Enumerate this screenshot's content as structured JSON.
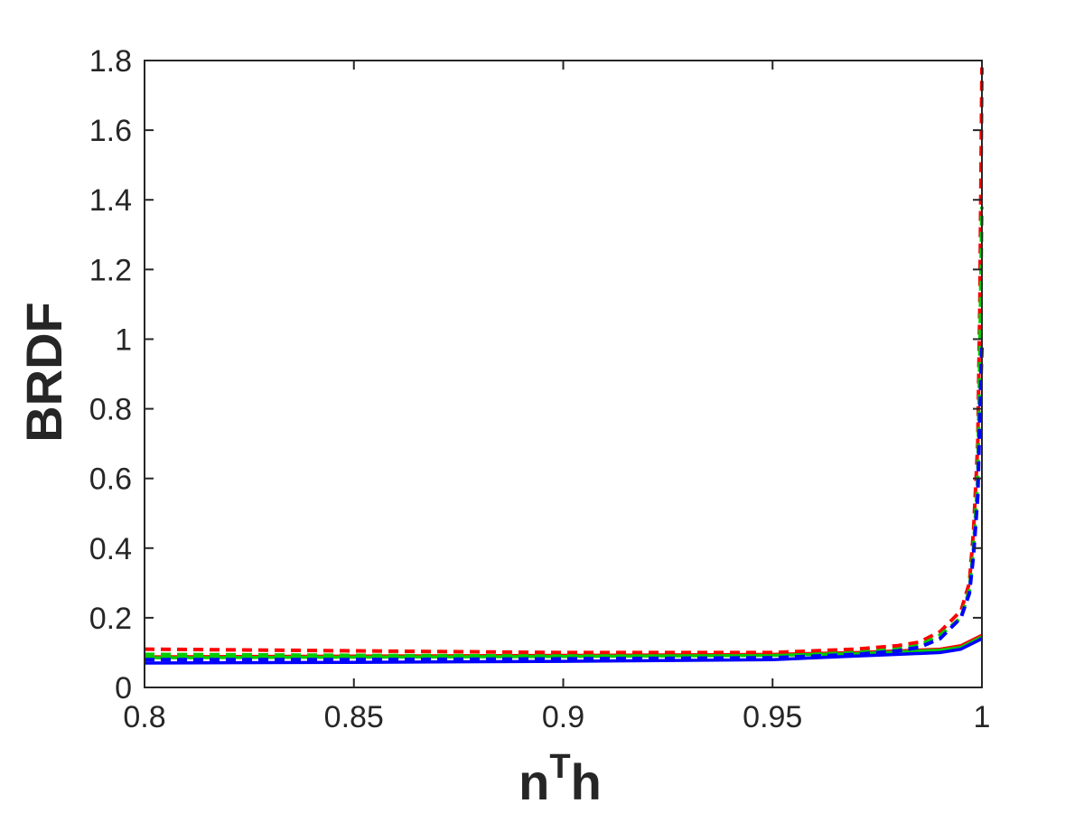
{
  "chart_data": {
    "type": "line",
    "title": "",
    "xlabel": "n",
    "xlabel_superscript": "T",
    "xlabel_suffix": "h",
    "ylabel": "BRDF",
    "xlim": [
      0.8,
      1.0
    ],
    "ylim": [
      0,
      1.8
    ],
    "xticks": [
      0.8,
      0.85,
      0.9,
      0.95,
      1.0
    ],
    "xtick_labels": [
      "0.8",
      "0.85",
      "0.9",
      "0.95",
      "1"
    ],
    "yticks": [
      0,
      0.2,
      0.4,
      0.6,
      0.8,
      1.0,
      1.2,
      1.4,
      1.6,
      1.8
    ],
    "ytick_labels": [
      "0",
      "0.2",
      "0.4",
      "0.6",
      "0.8",
      "1",
      "1.2",
      "1.4",
      "1.6",
      "1.8"
    ],
    "grid": false,
    "legend": "none",
    "series": [
      {
        "color": "#ff0000",
        "dashed": false,
        "x": [
          0.8,
          0.85,
          0.9,
          0.95,
          0.97,
          0.98,
          0.99,
          0.995,
          1.0
        ],
        "y": [
          0.088,
          0.09,
          0.092,
          0.095,
          0.1,
          0.105,
          0.11,
          0.12,
          0.15
        ]
      },
      {
        "color": "#00cc00",
        "dashed": false,
        "x": [
          0.8,
          0.85,
          0.9,
          0.95,
          0.97,
          0.98,
          0.99,
          0.995,
          1.0
        ],
        "y": [
          0.085,
          0.087,
          0.089,
          0.092,
          0.097,
          0.102,
          0.107,
          0.115,
          0.145
        ]
      },
      {
        "color": "#0000ff",
        "dashed": false,
        "x": [
          0.8,
          0.85,
          0.9,
          0.95,
          0.97,
          0.98,
          0.99,
          0.995,
          1.0
        ],
        "y": [
          0.07,
          0.072,
          0.075,
          0.08,
          0.09,
          0.095,
          0.1,
          0.11,
          0.14
        ]
      },
      {
        "color": "#ff0000",
        "dashed": true,
        "x": [
          0.8,
          0.85,
          0.9,
          0.95,
          0.97,
          0.98,
          0.985,
          0.99,
          0.995,
          0.997,
          0.998,
          0.999,
          0.9995,
          1.0
        ],
        "y": [
          0.11,
          0.105,
          0.1,
          0.1,
          0.11,
          0.12,
          0.13,
          0.16,
          0.22,
          0.3,
          0.45,
          0.7,
          1.1,
          1.78
        ]
      },
      {
        "color": "#00cc00",
        "dashed": true,
        "x": [
          0.8,
          0.85,
          0.9,
          0.95,
          0.97,
          0.98,
          0.985,
          0.99,
          0.995,
          0.997,
          0.998,
          0.999,
          0.9995,
          1.0
        ],
        "y": [
          0.095,
          0.092,
          0.09,
          0.09,
          0.1,
          0.11,
          0.12,
          0.15,
          0.2,
          0.28,
          0.4,
          0.6,
          0.95,
          1.38
        ]
      },
      {
        "color": "#0000ff",
        "dashed": true,
        "x": [
          0.8,
          0.85,
          0.9,
          0.95,
          0.97,
          0.98,
          0.985,
          0.99,
          0.995,
          0.997,
          0.998,
          0.999,
          0.9995,
          1.0
        ],
        "y": [
          0.08,
          0.08,
          0.082,
          0.085,
          0.095,
          0.105,
          0.115,
          0.14,
          0.2,
          0.27,
          0.38,
          0.55,
          0.78,
          0.98
        ]
      }
    ]
  }
}
